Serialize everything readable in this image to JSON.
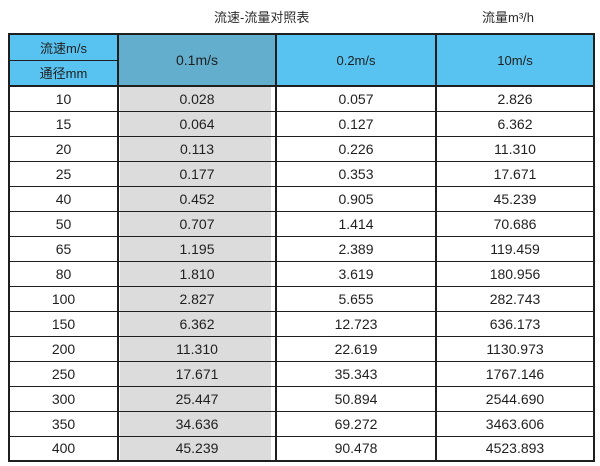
{
  "titles": {
    "main": "流速-流量对照表",
    "right": "流量m³/h"
  },
  "table": {
    "header": {
      "corner_top": "流速m/s",
      "corner_bottom": "通径mm",
      "columns": [
        "0.1m/s",
        "0.2m/s",
        "10m/s"
      ]
    },
    "rows": [
      {
        "diameter": "10",
        "values": [
          "0.028",
          "0.057",
          "2.826"
        ]
      },
      {
        "diameter": "15",
        "values": [
          "0.064",
          "0.127",
          "6.362"
        ]
      },
      {
        "diameter": "20",
        "values": [
          "0.113",
          "0.226",
          "11.310"
        ]
      },
      {
        "diameter": "25",
        "values": [
          "0.177",
          "0.353",
          "17.671"
        ]
      },
      {
        "diameter": "40",
        "values": [
          "0.452",
          "0.905",
          "45.239"
        ]
      },
      {
        "diameter": "50",
        "values": [
          "0.707",
          "1.414",
          "70.686"
        ]
      },
      {
        "diameter": "65",
        "values": [
          "1.195",
          "2.389",
          "119.459"
        ]
      },
      {
        "diameter": "80",
        "values": [
          "1.810",
          "3.619",
          "180.956"
        ]
      },
      {
        "diameter": "100",
        "values": [
          "2.827",
          "5.655",
          "282.743"
        ]
      },
      {
        "diameter": "150",
        "values": [
          "6.362",
          "12.723",
          "636.173"
        ]
      },
      {
        "diameter": "200",
        "values": [
          "11.310",
          "22.619",
          "1130.973"
        ]
      },
      {
        "diameter": "250",
        "values": [
          "17.671",
          "35.343",
          "1767.146"
        ]
      },
      {
        "diameter": "300",
        "values": [
          "25.447",
          "50.894",
          "2544.690"
        ]
      },
      {
        "diameter": "350",
        "values": [
          "34.636",
          "69.272",
          "3463.606"
        ]
      },
      {
        "diameter": "400",
        "values": [
          "45.239",
          "90.478",
          "4523.893"
        ]
      }
    ]
  },
  "colors": {
    "header_blue": "#58c3f0",
    "header_blue_dark": "#63aecd",
    "highlight_gray": "#dcdcdc",
    "border": "#1f1f1f",
    "text": "#1f1f1f"
  },
  "chart_data": {
    "type": "table",
    "title": "流速-流量对照表",
    "unit_label": "流量m³/h",
    "row_header": "通径mm",
    "col_header": "流速m/s",
    "columns": [
      "0.1m/s",
      "0.2m/s",
      "10m/s"
    ],
    "diameters_mm": [
      10,
      15,
      20,
      25,
      40,
      50,
      65,
      80,
      100,
      150,
      200,
      250,
      300,
      350,
      400
    ],
    "series": [
      {
        "name": "0.1m/s",
        "values": [
          0.028,
          0.064,
          0.113,
          0.177,
          0.452,
          0.707,
          1.195,
          1.81,
          2.827,
          6.362,
          11.31,
          17.671,
          25.447,
          34.636,
          45.239
        ]
      },
      {
        "name": "0.2m/s",
        "values": [
          0.057,
          0.127,
          0.226,
          0.353,
          0.905,
          1.414,
          2.389,
          3.619,
          5.655,
          12.723,
          22.619,
          35.343,
          50.894,
          69.272,
          90.478
        ]
      },
      {
        "name": "10m/s",
        "values": [
          2.826,
          6.362,
          11.31,
          17.671,
          45.239,
          70.686,
          119.459,
          180.956,
          282.743,
          636.173,
          1130.973,
          1767.146,
          2544.69,
          3463.606,
          4523.893
        ]
      }
    ]
  }
}
